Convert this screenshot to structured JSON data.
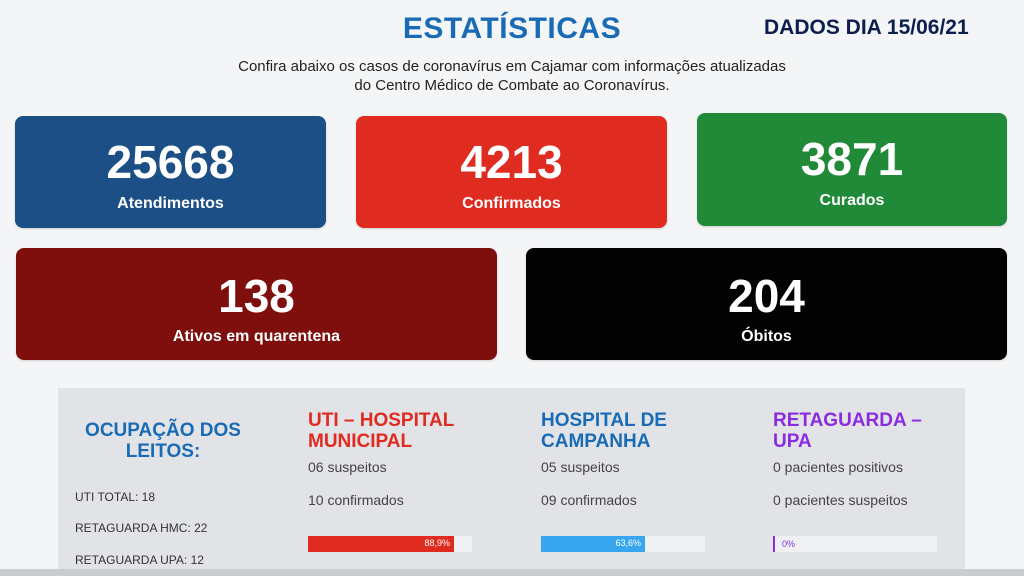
{
  "header": {
    "title": "ESTATÍSTICAS",
    "date": "DADOS DIA 15/06/21",
    "subtitle_line1": "Confira abaixo os casos de coronavírus em Cajamar com informações atualizadas",
    "subtitle_line2": "do Centro Médico de Combate ao Coronavírus."
  },
  "cards": {
    "atendimentos": {
      "value": "25668",
      "label": "Atendimentos",
      "color": "#1b4f86"
    },
    "confirmados": {
      "value": "4213",
      "label": "Confirmados",
      "color": "#df2b20"
    },
    "curados": {
      "value": "3871",
      "label": "Curados",
      "color": "#208a38"
    },
    "ativos": {
      "value": "138",
      "label": "Ativos em quarentena",
      "color": "#7e0f0c"
    },
    "obitos": {
      "value": "204",
      "label": "Óbitos",
      "color": "#020202"
    }
  },
  "occupancy": {
    "title_line1": "OCUPAÇÃO DOS",
    "title_line2": "LEITOS:",
    "uti_total": "UTI TOTAL: 18",
    "retaguarda_hmc": "RETAGUARDA HMC: 22",
    "retaguarda_upa": "RETAGUARDA UPA: 12"
  },
  "columns": {
    "uti": {
      "title_line1": "UTI – HOSPITAL",
      "title_line2": "MUNICIPAL",
      "line1": "06 suspeitos",
      "line2": "10 confirmados",
      "bar_label": "88,9%",
      "bar_percent": 88.9,
      "color": "#df2b20"
    },
    "campanha": {
      "title_line1": "HOSPITAL DE",
      "title_line2": "CAMPANHA",
      "line1": "05 suspeitos",
      "line2": "09 confirmados",
      "bar_label": "63,6%",
      "bar_percent": 63.6,
      "color": "#1a6bb5",
      "bar_color": "#38a6ee"
    },
    "upa": {
      "title_line1": "RETAGUARDA –",
      "title_line2": "UPA",
      "line1": "0 pacientes positivos",
      "line2": "0 pacientes suspeitos",
      "bar_label": "0%",
      "bar_percent": 0,
      "color": "#8a2be2"
    }
  }
}
